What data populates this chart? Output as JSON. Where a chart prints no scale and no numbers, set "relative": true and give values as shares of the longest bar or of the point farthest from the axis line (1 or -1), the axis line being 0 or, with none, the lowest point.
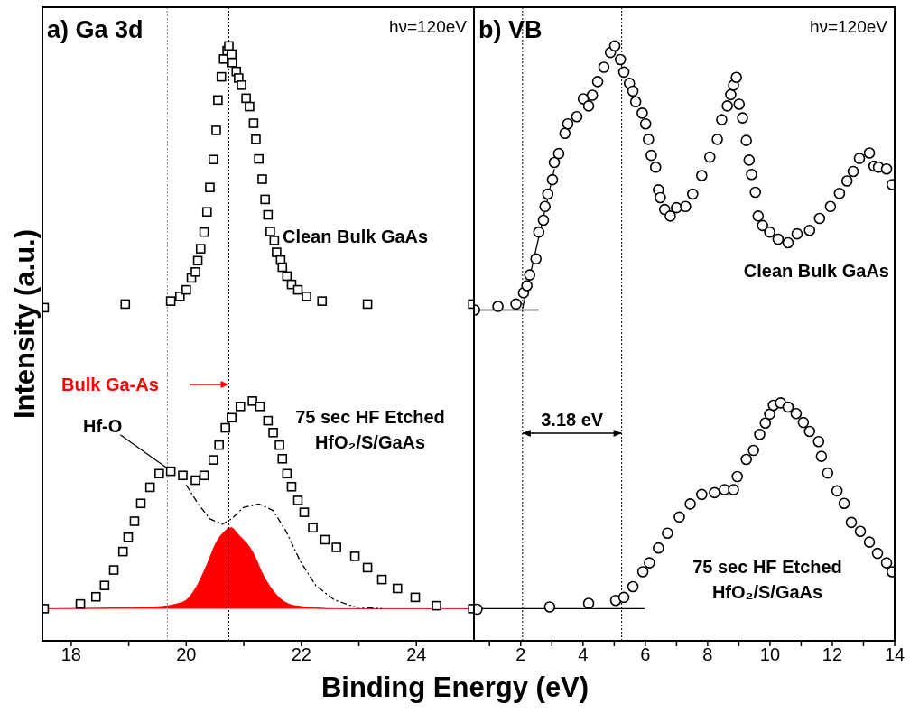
{
  "chart_data": [
    {
      "type": "scatter",
      "title": "a) Ga 3d",
      "xlabel": "Binding Energy (eV)",
      "ylabel": "Intensity (a.u.)",
      "relative": true,
      "marker": "square",
      "xlim": [
        17.5,
        25
      ],
      "xticks": [
        18,
        {
          "value": 19,
          "label": null
        },
        20,
        {
          "value": 21,
          "label": null
        },
        22,
        {
          "value": 23,
          "label": null
        },
        24
      ],
      "annotations": [
        "hν=120eV",
        {
          "text": "Hf-O",
          "x": 19.67,
          "y": 0.29
        }
      ],
      "ref_lines": [
        {
          "axis": "x",
          "value": 20.74,
          "line_style": "dotted",
          "color": "#000000"
        },
        {
          "axis": "x",
          "value": 19.67,
          "line_style": "dotted",
          "color": "#808080"
        }
      ],
      "series": [
        {
          "name": "Clean Bulk GaAs",
          "color": "#000000",
          "type": "scatter",
          "x": [
            17.53,
            18.94,
            19.73,
            19.89,
            20.0,
            20.09,
            20.16,
            20.2,
            20.25,
            20.31,
            20.36,
            20.41,
            20.47,
            20.52,
            20.55,
            20.61,
            20.65,
            20.71,
            20.74,
            20.79,
            20.8,
            20.87,
            20.91,
            20.96,
            21.04,
            21.1,
            21.17,
            21.21,
            21.26,
            21.32,
            21.37,
            21.42,
            21.46,
            21.53,
            21.57,
            21.64,
            21.67,
            21.75,
            21.83,
            21.94,
            22.09,
            22.36,
            23.15,
            24.98
          ],
          "values": [
            0.56,
            0.566,
            0.571,
            0.579,
            0.59,
            0.61,
            0.62,
            0.639,
            0.659,
            0.687,
            0.721,
            0.762,
            0.809,
            0.858,
            0.909,
            0.948,
            0.978,
            0.992,
            1.0,
            0.986,
            0.972,
            0.957,
            0.946,
            0.934,
            0.912,
            0.898,
            0.87,
            0.843,
            0.81,
            0.776,
            0.742,
            0.716,
            0.688,
            0.673,
            0.653,
            0.64,
            0.628,
            0.613,
            0.599,
            0.59,
            0.579,
            0.571,
            0.566,
            0.566
          ]
        },
        {
          "name": "75 sec HF Etched\nHfO₂/S/GaAs",
          "color": "#000000",
          "type": "scatter",
          "x": [
            17.53,
            18.16,
            18.43,
            18.58,
            18.74,
            18.9,
            18.99,
            19.1,
            19.21,
            19.37,
            19.53,
            19.73,
            19.94,
            20.16,
            20.31,
            20.47,
            20.57,
            20.68,
            20.79,
            20.94,
            21.15,
            21.28,
            21.42,
            21.51,
            21.62,
            21.67,
            21.75,
            21.83,
            21.94,
            22.05,
            22.2,
            22.41,
            22.61,
            22.93,
            23.15,
            23.4,
            23.67,
            23.98,
            24.35,
            24.98
          ],
          "values": [
            0.054,
            0.062,
            0.074,
            0.093,
            0.119,
            0.15,
            0.174,
            0.201,
            0.231,
            0.258,
            0.281,
            0.285,
            0.278,
            0.27,
            0.278,
            0.304,
            0.329,
            0.358,
            0.375,
            0.394,
            0.403,
            0.394,
            0.37,
            0.35,
            0.329,
            0.306,
            0.281,
            0.259,
            0.236,
            0.216,
            0.19,
            0.17,
            0.157,
            0.142,
            0.123,
            0.103,
            0.088,
            0.073,
            0.059,
            0.054
          ]
        },
        {
          "name": "Bulk Ga-As",
          "color": "#ff0000",
          "type": "area",
          "marker": "none",
          "x": [
            17.53,
            19.46,
            19.94,
            20.16,
            20.36,
            20.52,
            20.68,
            20.79,
            20.88,
            21.15,
            21.35,
            21.57,
            21.89,
            22.61,
            24.98
          ],
          "values": [
            0.054,
            0.057,
            0.065,
            0.088,
            0.128,
            0.165,
            0.185,
            0.19,
            0.181,
            0.15,
            0.108,
            0.077,
            0.059,
            0.054,
            0.054
          ]
        },
        {
          "color": "#000000",
          "type": "line",
          "marker": "none",
          "line_style": "dashed",
          "x": [
            20.0,
            20.2,
            20.41,
            20.63,
            20.79,
            20.99,
            21.26,
            21.51,
            21.73,
            21.98,
            22.25,
            22.57,
            22.93,
            23.4
          ],
          "values": [
            0.262,
            0.231,
            0.205,
            0.196,
            0.205,
            0.224,
            0.23,
            0.219,
            0.185,
            0.134,
            0.093,
            0.069,
            0.057,
            0.054
          ]
        }
      ]
    },
    {
      "type": "scatter",
      "title": "b) VB",
      "relative": true,
      "marker": "circle",
      "xlim": [
        0.5,
        14
      ],
      "xticks": [
        {
          "value": 1,
          "label": null
        },
        2,
        {
          "value": 3,
          "label": null
        },
        4,
        {
          "value": 5,
          "label": null
        },
        6,
        {
          "value": 7,
          "label": null
        },
        8,
        {
          "value": 9,
          "label": null
        },
        10,
        {
          "value": 11,
          "label": null
        },
        12,
        {
          "value": 13,
          "label": null
        },
        14
      ],
      "annotations": [
        "hν=120eV",
        "3.18 eV"
      ],
      "ref_lines": [
        {
          "axis": "x",
          "value": 2.06,
          "line_style": "dotted",
          "color": "#000000"
        },
        {
          "axis": "x",
          "value": 5.24,
          "line_style": "dotted",
          "color": "#000000"
        }
      ],
      "series": [
        {
          "name": "Clean Bulk GaAs",
          "color": "#000000",
          "type": "scatter",
          "x": [
            0.52,
            1.27,
            1.85,
            2.09,
            2.2,
            2.29,
            2.49,
            2.58,
            2.73,
            2.78,
            2.87,
            3.02,
            3.08,
            3.22,
            3.42,
            3.51,
            3.8,
            4.01,
            4.18,
            4.3,
            4.47,
            4.67,
            4.88,
            5.02,
            5.2,
            5.31,
            5.49,
            5.6,
            5.69,
            5.9,
            6.01,
            6.1,
            6.19,
            6.33,
            6.42,
            6.48,
            6.62,
            6.8,
            7.0,
            7.29,
            7.52,
            7.81,
            8.07,
            8.31,
            8.45,
            8.63,
            8.74,
            8.83,
            8.92,
            9.01,
            9.12,
            9.24,
            9.33,
            9.41,
            9.53,
            9.62,
            9.76,
            9.99,
            10.26,
            10.58,
            10.87,
            11.27,
            11.59,
            11.94,
            12.23,
            12.47,
            12.67,
            12.87,
            13.19,
            13.34,
            13.48,
            13.74,
            13.92
          ],
          "values": [
            0.556,
            0.562,
            0.566,
            0.585,
            0.597,
            0.615,
            0.642,
            0.687,
            0.707,
            0.73,
            0.751,
            0.775,
            0.804,
            0.819,
            0.853,
            0.869,
            0.881,
            0.911,
            0.899,
            0.917,
            0.94,
            0.964,
            0.989,
            1.0,
            0.977,
            0.956,
            0.937,
            0.924,
            0.906,
            0.887,
            0.869,
            0.843,
            0.816,
            0.796,
            0.758,
            0.745,
            0.725,
            0.714,
            0.728,
            0.73,
            0.751,
            0.782,
            0.813,
            0.843,
            0.876,
            0.899,
            0.918,
            0.934,
            0.947,
            0.902,
            0.879,
            0.841,
            0.808,
            0.784,
            0.754,
            0.714,
            0.698,
            0.687,
            0.675,
            0.669,
            0.684,
            0.69,
            0.71,
            0.73,
            0.752,
            0.773,
            0.789,
            0.811,
            0.82,
            0.798,
            0.796,
            0.793,
            0.767
          ]
        },
        {
          "name": "75 sec HF Etched\nHfO₂/S/GaAs",
          "color": "#000000",
          "type": "scatter",
          "x": [
            0.6,
            2.93,
            4.18,
            5.05,
            5.31,
            5.6,
            5.92,
            6.13,
            6.42,
            6.71,
            7.09,
            7.44,
            7.81,
            8.22,
            8.54,
            8.83,
            8.95,
            9.24,
            9.47,
            9.67,
            9.85,
            9.99,
            10.11,
            10.34,
            10.58,
            10.84,
            11.07,
            11.27,
            11.56,
            11.65,
            11.85,
            12.15,
            12.38,
            12.61,
            12.9,
            13.19,
            13.45,
            13.74,
            13.92
          ],
          "values": [
            0.053,
            0.057,
            0.063,
            0.068,
            0.073,
            0.091,
            0.116,
            0.131,
            0.156,
            0.181,
            0.208,
            0.23,
            0.246,
            0.249,
            0.254,
            0.254,
            0.276,
            0.305,
            0.32,
            0.347,
            0.366,
            0.381,
            0.396,
            0.4,
            0.393,
            0.382,
            0.367,
            0.352,
            0.335,
            0.31,
            0.282,
            0.252,
            0.231,
            0.199,
            0.184,
            0.166,
            0.147,
            0.131,
            0.116
          ]
        },
        {
          "color": "#000000",
          "type": "line",
          "marker": "none",
          "line_style": "solid",
          "x": [
            0.5,
            2.58
          ],
          "values": [
            0.556,
            0.556
          ]
        },
        {
          "color": "#000000",
          "type": "line",
          "marker": "none",
          "line_style": "solid",
          "x": [
            2.06,
            3.08
          ],
          "values": [
            0.559,
            0.793
          ]
        },
        {
          "color": "#000000",
          "type": "line",
          "marker": "none",
          "line_style": "solid",
          "x": [
            0.5,
            5.98
          ],
          "values": [
            0.054,
            0.054
          ]
        }
      ]
    }
  ]
}
